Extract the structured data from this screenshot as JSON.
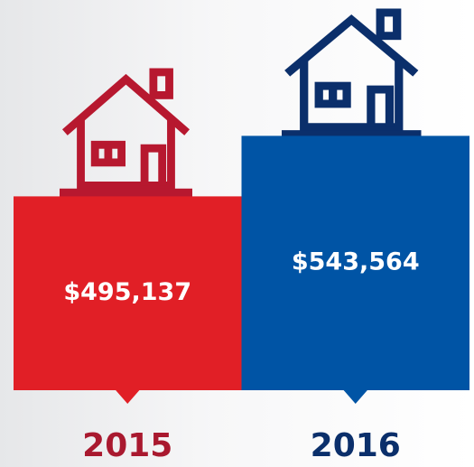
{
  "chart_data": {
    "type": "bar",
    "categories": [
      "2015",
      "2016"
    ],
    "values": [
      495137,
      543564
    ],
    "value_labels": [
      "$495,137",
      "$543,564"
    ],
    "colors": [
      "#e11f26",
      "#0054a5"
    ],
    "category_colors": [
      "#a9192f",
      "#0b2f6b"
    ],
    "ylim": [
      340000,
      550000
    ]
  }
}
